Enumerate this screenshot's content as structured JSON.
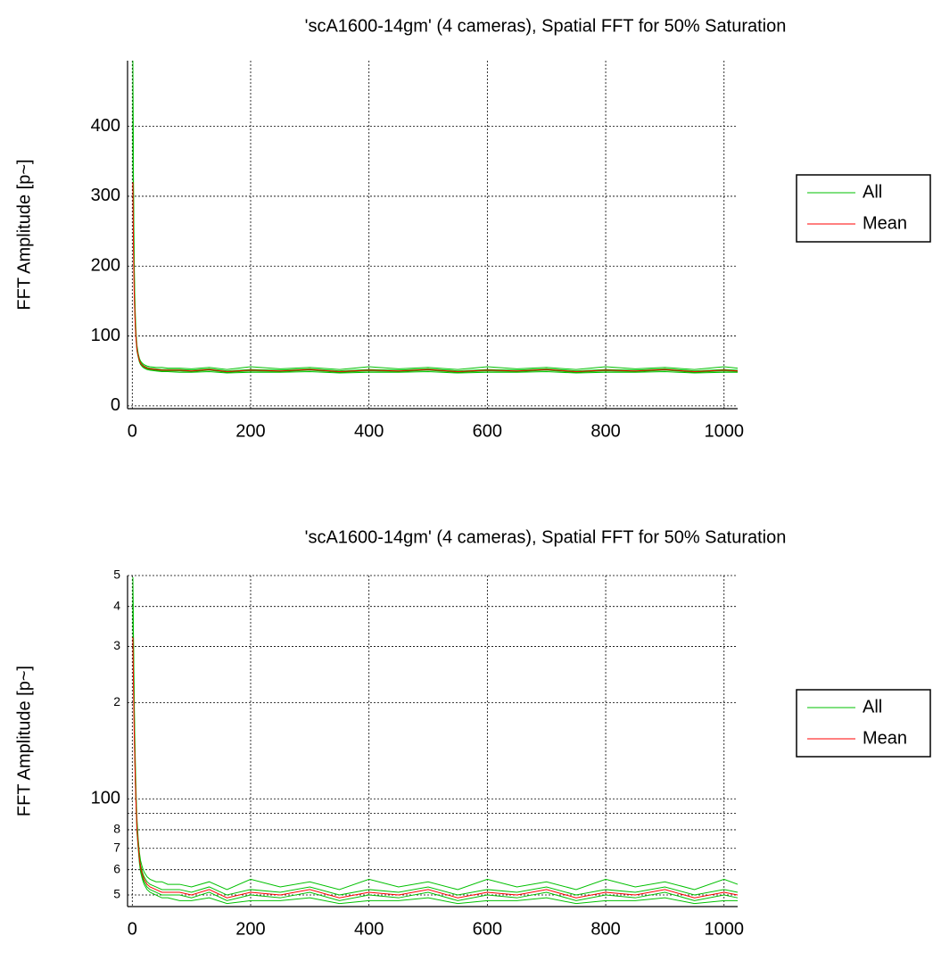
{
  "chart_data": [
    {
      "type": "line",
      "title": "'scA1600-14gm' (4 cameras), Spatial FFT for 50% Saturation",
      "y_label": "FFT Amplitude [p~]",
      "x": [
        1,
        2,
        3,
        4,
        5,
        6,
        7,
        8,
        10,
        12,
        14,
        17,
        20,
        25,
        30,
        40,
        50,
        60,
        80,
        100,
        130,
        160,
        200,
        250,
        300,
        350,
        400,
        450,
        500,
        550,
        600,
        650,
        700,
        750,
        800,
        850,
        900,
        950,
        1000,
        1023
      ],
      "xlim": [
        -8,
        1023
      ],
      "xticks": [
        0,
        200,
        400,
        600,
        800,
        1000
      ],
      "ylim": [
        -4,
        494
      ],
      "yticks": [
        0,
        100,
        200,
        300,
        400
      ],
      "ylog": false,
      "grid": true,
      "legend": "outside right",
      "series": [
        {
          "name": "All",
          "color": "#00c000",
          "values": [
            [
              494,
              320,
              225,
              165,
              135,
              112,
              96,
              86,
              75,
              68,
              64,
              61,
              59,
              57,
              56,
              55,
              55,
              54,
              54,
              53,
              55,
              52,
              56,
              53,
              55,
              52,
              56,
              53,
              55,
              52,
              56,
              53,
              55,
              52,
              56,
              53,
              55,
              52,
              56,
              54
            ],
            [
              460,
              300,
              210,
              155,
              125,
              105,
              92,
              82,
              73,
              66,
              62,
              59,
              57,
              55,
              54,
              53,
              52,
              52,
              52,
              51,
              53,
              50,
              52,
              51,
              53,
              50,
              52,
              51,
              53,
              50,
              52,
              51,
              53,
              50,
              52,
              51,
              53,
              50,
              52,
              51
            ],
            [
              430,
              280,
              200,
              150,
              120,
              102,
              90,
              80,
              71,
              64,
              60,
              57,
              55,
              53,
              52,
              51,
              50,
              50,
              50,
              49,
              51,
              48,
              50,
              49,
              51,
              48,
              50,
              49,
              51,
              48,
              50,
              49,
              51,
              48,
              50,
              49,
              51,
              48,
              50,
              49
            ],
            [
              400,
              260,
              190,
              140,
              115,
              100,
              88,
              78,
              70,
              63,
              59,
              56,
              54,
              52,
              51,
              50,
              49,
              49,
              48,
              48,
              49,
              47,
              48,
              48,
              49,
              47,
              48,
              48,
              49,
              47,
              48,
              48,
              49,
              47,
              48,
              48,
              49,
              47,
              48,
              48
            ]
          ]
        },
        {
          "name": "Mean",
          "color": "#ff0000",
          "values": [
            320,
            225,
            170,
            140,
            118,
            100,
            90,
            80,
            72,
            65,
            61,
            58,
            56,
            54,
            53,
            52,
            51,
            51,
            51,
            50,
            52,
            49,
            51,
            50,
            52,
            49,
            51,
            50,
            52,
            49,
            51,
            50,
            52,
            49,
            51,
            50,
            52,
            49,
            51,
            50
          ]
        }
      ]
    },
    {
      "type": "line",
      "title": "'scA1600-14gm' (4 cameras), Spatial FFT for 50% Saturation",
      "y_label": "FFT Amplitude [p~]",
      "x": [
        1,
        2,
        3,
        4,
        5,
        6,
        7,
        8,
        10,
        12,
        14,
        17,
        20,
        25,
        30,
        40,
        50,
        60,
        80,
        100,
        130,
        160,
        200,
        250,
        300,
        350,
        400,
        450,
        500,
        550,
        600,
        650,
        700,
        750,
        800,
        850,
        900,
        950,
        1000,
        1023
      ],
      "xlim": [
        -8,
        1023
      ],
      "xticks": [
        0,
        200,
        400,
        600,
        800,
        1000
      ],
      "ylim": [
        46,
        500
      ],
      "yticks": [
        {
          "value": 500,
          "label": "5"
        },
        {
          "value": 400,
          "label": "4"
        },
        {
          "value": 300,
          "label": "3"
        },
        {
          "value": 200,
          "label": "2"
        },
        100,
        {
          "value": 90,
          "label": null
        },
        {
          "value": 80,
          "label": "8"
        },
        {
          "value": 70,
          "label": "7"
        },
        {
          "value": 60,
          "label": "6"
        },
        {
          "value": 50,
          "label": "5"
        }
      ],
      "ylog": true,
      "grid": true,
      "legend": "outside right",
      "series": [
        {
          "name": "All",
          "color": "#00c000",
          "values": [
            [
              494,
              320,
              225,
              165,
              135,
              112,
              96,
              86,
              75,
              68,
              64,
              61,
              59,
              57,
              56,
              55,
              55,
              54,
              54,
              53,
              55,
              52,
              56,
              53,
              55,
              52,
              56,
              53,
              55,
              52,
              56,
              53,
              55,
              52,
              56,
              53,
              55,
              52,
              56,
              54
            ],
            [
              460,
              300,
              210,
              155,
              125,
              105,
              92,
              82,
              73,
              66,
              62,
              59,
              57,
              55,
              54,
              53,
              52,
              52,
              52,
              51,
              53,
              50,
              52,
              51,
              53,
              50,
              52,
              51,
              53,
              50,
              52,
              51,
              53,
              50,
              52,
              51,
              53,
              50,
              52,
              51
            ],
            [
              430,
              280,
              200,
              150,
              120,
              102,
              90,
              80,
              71,
              64,
              60,
              57,
              55,
              53,
              52,
              51,
              50,
              50,
              50,
              49,
              51,
              48,
              50,
              49,
              51,
              48,
              50,
              49,
              51,
              48,
              50,
              49,
              51,
              48,
              50,
              49,
              51,
              48,
              50,
              49
            ],
            [
              400,
              260,
              190,
              140,
              115,
              100,
              88,
              78,
              70,
              63,
              59,
              56,
              54,
              52,
              51,
              50,
              49,
              49,
              48,
              48,
              49,
              47,
              48,
              48,
              49,
              47,
              48,
              48,
              49,
              47,
              48,
              48,
              49,
              47,
              48,
              48,
              49,
              47,
              48,
              48
            ]
          ]
        },
        {
          "name": "Mean",
          "color": "#ff0000",
          "values": [
            320,
            225,
            170,
            140,
            118,
            100,
            90,
            80,
            72,
            65,
            61,
            58,
            56,
            54,
            53,
            52,
            51,
            51,
            51,
            50,
            52,
            49,
            51,
            50,
            52,
            49,
            51,
            50,
            52,
            49,
            51,
            50,
            52,
            49,
            51,
            50,
            52,
            49,
            51,
            50
          ]
        }
      ]
    }
  ]
}
